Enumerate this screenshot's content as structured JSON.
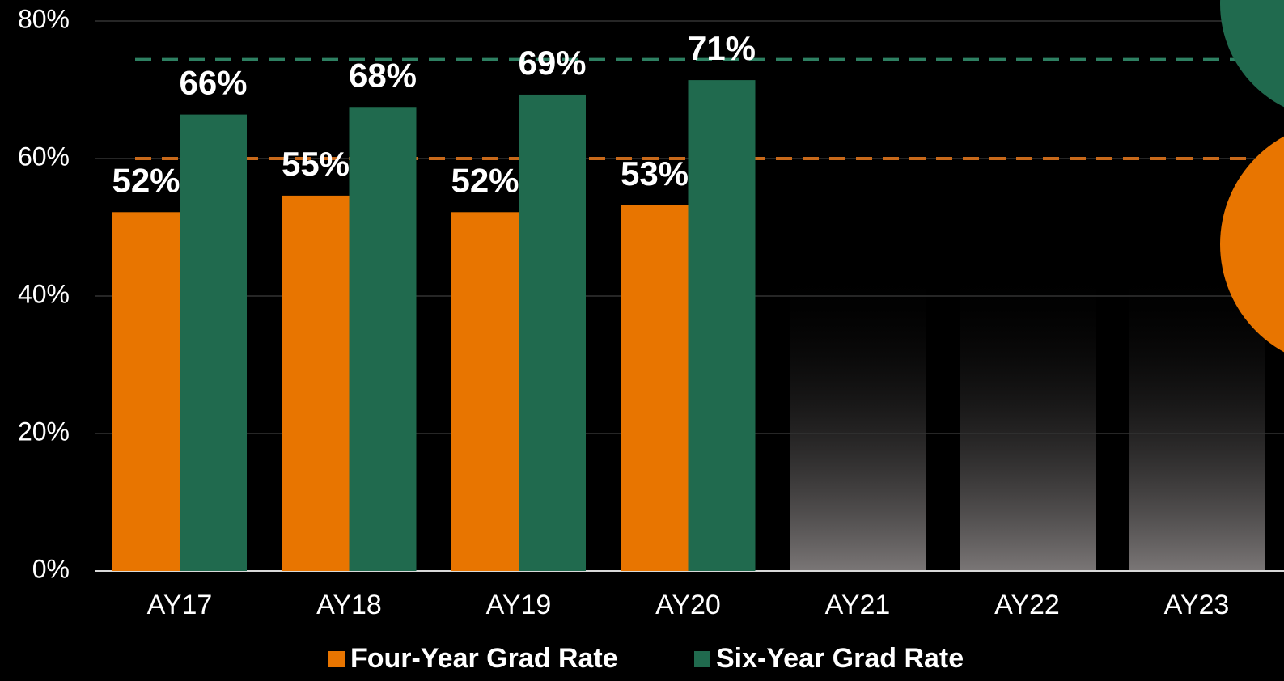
{
  "chart_data": {
    "type": "bar",
    "categories": [
      "AY17",
      "AY18",
      "AY19",
      "AY20",
      "AY21",
      "AY22",
      "AY23"
    ],
    "series": [
      {
        "name": "Four-Year Grad Rate",
        "color": "#e87500",
        "values": [
          52.2,
          54.6,
          52.2,
          53.2,
          null,
          null,
          null
        ],
        "value_labels": [
          "52%",
          "55%",
          "52%",
          "53%",
          null,
          null,
          null
        ]
      },
      {
        "name": "Six-Year Grad Rate",
        "color": "#206a4e",
        "values": [
          66.4,
          67.5,
          69.3,
          71.4,
          null,
          null,
          null
        ],
        "value_labels": [
          "66%",
          "68%",
          "69%",
          "71%",
          null,
          null,
          null
        ]
      }
    ],
    "reference_lines": [
      {
        "value": 74.4,
        "color": "#2e8062"
      },
      {
        "value": 60,
        "color": "#c8691a"
      }
    ],
    "ylim": [
      0,
      80
    ],
    "yticks": [
      {
        "value": 0,
        "label": "0%"
      },
      {
        "value": 20,
        "label": "20%"
      },
      {
        "value": 40,
        "label": "40%"
      },
      {
        "value": 60,
        "label": "60%"
      },
      {
        "value": 80,
        "label": "80%"
      }
    ],
    "grid": true,
    "legend": "bottom"
  }
}
